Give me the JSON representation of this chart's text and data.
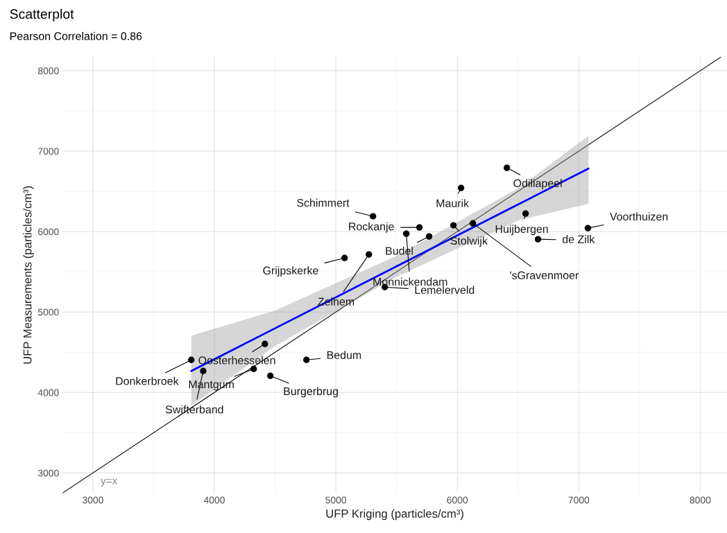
{
  "chart_data": {
    "type": "scatter",
    "title": "Scatterplot",
    "subtitle": "Pearson Correlation = 0.86",
    "xlabel": "UFP Kriging (particles/cm³)",
    "ylabel": "UFP Measurements (particles/cm³)",
    "xlim": [
      2750,
      8220
    ],
    "ylim": [
      2750,
      8170
    ],
    "xticks": [
      3000,
      4000,
      5000,
      6000,
      7000,
      8000
    ],
    "yticks": [
      3000,
      4000,
      5000,
      6000,
      7000,
      8000
    ],
    "grid": true,
    "series": [
      {
        "type": "line",
        "color": "#000000",
        "x": [
          2750,
          8170
        ],
        "values": [
          2750,
          8170
        ]
      },
      {
        "type": "line",
        "color": "#0000ff",
        "x": [
          3810,
          4500,
          5500,
          6500,
          7080
        ],
        "values": [
          4267,
          4798,
          5568,
          6337,
          6784
        ],
        "lower": [
          3836,
          4578,
          5438,
          6137,
          6345
        ],
        "upper": [
          4707,
          5018,
          5698,
          6537,
          7190
        ]
      },
      {
        "color": "#000000",
        "marker": "circle",
        "x": [
          3810,
          3908,
          4324,
          4461,
          4416,
          4758,
          5072,
          5272,
          5403,
          5306,
          5688,
          5580,
          5768,
          5968,
          6128,
          6031,
          6408,
          6562,
          6664,
          7075
        ],
        "values": [
          4405,
          4267,
          4293,
          4207,
          4603,
          4405,
          5672,
          5716,
          5310,
          6190,
          6052,
          5974,
          5940,
          6078,
          6103,
          6543,
          6793,
          6224,
          5905,
          6043
        ]
      }
    ],
    "annotations": [
      {
        "text": "Donkerbroek",
        "x": 3810,
        "y": 4405
      },
      {
        "text": "Swifterband",
        "x": 3908,
        "y": 4267
      },
      {
        "text": "Mantgum",
        "x": 4324,
        "y": 4293
      },
      {
        "text": "Burgerbrug",
        "x": 4461,
        "y": 4207
      },
      {
        "text": "Oosterhesselen",
        "x": 4416,
        "y": 4603
      },
      {
        "text": "Bedum",
        "x": 4758,
        "y": 4405
      },
      {
        "text": "Grijpskerke",
        "x": 5072,
        "y": 5672
      },
      {
        "text": "Zelhem",
        "x": 5272,
        "y": 5716
      },
      {
        "text": "Lemelerveld",
        "x": 5403,
        "y": 5310
      },
      {
        "text": "Schimmert",
        "x": 5306,
        "y": 6190
      },
      {
        "text": "Rockanje",
        "x": 5688,
        "y": 6052
      },
      {
        "text": "Monnickendam",
        "x": 5580,
        "y": 5974
      },
      {
        "text": "Budel",
        "x": 5768,
        "y": 5940
      },
      {
        "text": "Stolwijk",
        "x": 5968,
        "y": 6078
      },
      {
        "text": "'sGravenmoer",
        "x": 6128,
        "y": 6103
      },
      {
        "text": "Maurik",
        "x": 6031,
        "y": 6543
      },
      {
        "text": "Odiliapeel",
        "x": 6408,
        "y": 6793
      },
      {
        "text": "Huijbergen",
        "x": 6562,
        "y": 6224
      },
      {
        "text": "de Zilk",
        "x": 6664,
        "y": 5905
      },
      {
        "text": "Voorthuizen",
        "x": 7075,
        "y": 6043
      },
      "y=x"
    ]
  }
}
